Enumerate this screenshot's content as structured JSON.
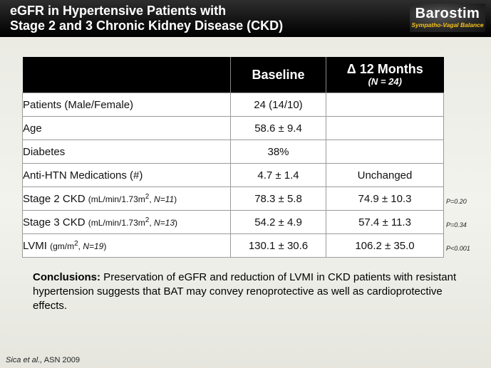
{
  "header": {
    "title_line1": "eGFR in Hypertensive Patients with",
    "title_line2": "Stage 2 and 3 Chronic Kidney Disease (CKD)",
    "logo": {
      "name": "Barostim",
      "tagline": "Sympatho-Vagal Balance",
      "accent": "#f6c21b"
    }
  },
  "table": {
    "headers": {
      "label": "",
      "baseline": "Baseline",
      "delta": "Δ 12 Months",
      "delta_n": "(N = 24)"
    },
    "rows": [
      {
        "label": "Patients (Male/Female)",
        "baseline": "24 (14/10)",
        "delta": "",
        "p": ""
      },
      {
        "label": "Age",
        "baseline": "58.6  ± 9.4",
        "delta": "",
        "p": ""
      },
      {
        "label": "Diabetes",
        "baseline": "38%",
        "delta": "",
        "p": ""
      },
      {
        "label": "Anti-HTN Medications (#)",
        "baseline": "4.7  ± 1.4",
        "delta": "Unchanged",
        "p": ""
      },
      {
        "label": "Stage 2 CKD",
        "unit_pre": "mL/min/1.73m",
        "unit_sup": "2",
        "unit_post": ",  ",
        "n": "N=11",
        "baseline": "78.3  ± 5.8",
        "delta": "74.9  ± 10.3",
        "p": "P=0.20"
      },
      {
        "label": "Stage 3 CKD",
        "unit_pre": "mL/min/1.73m",
        "unit_sup": "2",
        "unit_post": ",  ",
        "n": "N=13",
        "baseline": "54.2  ± 4.9",
        "delta": "57.4  ± 11.3",
        "p": "P=0.34"
      },
      {
        "label": "LVMI",
        "unit_pre": "gm/m",
        "unit_sup": "2",
        "unit_post": ",  ",
        "n": "N=19",
        "baseline": "130.1  ± 30.6",
        "delta": "106.2  ± 35.0",
        "p": "P<0.001"
      }
    ]
  },
  "conclusion": {
    "lead": "Conclusions:",
    "text": " Preservation of eGFR and reduction of LVMI in CKD patients with resistant hypertension suggests that BAT may convey renoprotective as well as cardioprotective effects."
  },
  "citation": {
    "authors": "Sica et al.,",
    "source": " ASN 2009"
  }
}
